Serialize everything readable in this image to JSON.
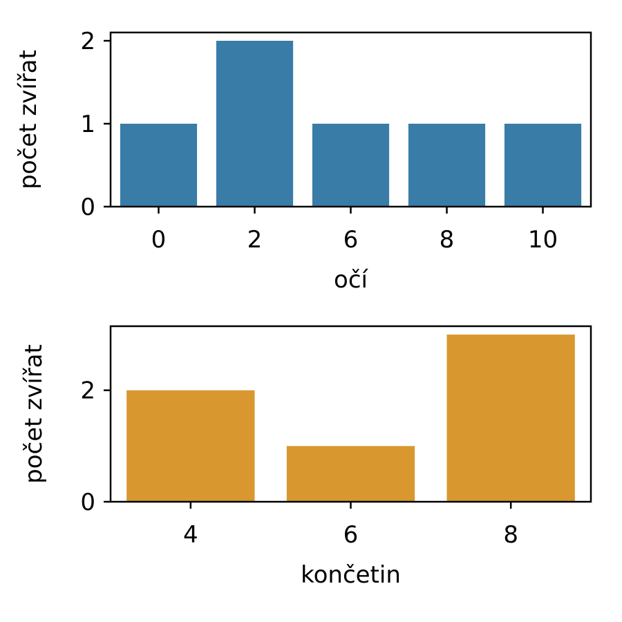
{
  "chart_data": [
    {
      "type": "bar",
      "categories": [
        "0",
        "2",
        "6",
        "8",
        "10"
      ],
      "values": [
        1,
        2,
        1,
        1,
        1
      ],
      "title": "",
      "xlabel": "očí",
      "ylabel": "počet zvířat",
      "ylim": [
        0,
        2.1
      ],
      "yticks": [
        0,
        1,
        2
      ],
      "color": "#3a7ca8",
      "grid": false
    },
    {
      "type": "bar",
      "categories": [
        "4",
        "6",
        "8"
      ],
      "values": [
        2,
        1,
        3
      ],
      "title": "",
      "xlabel": "končetin",
      "ylabel": "počet zvířat",
      "ylim": [
        0,
        3.15
      ],
      "yticks": [
        0,
        2
      ],
      "color": "#d8982f",
      "grid": false
    }
  ]
}
